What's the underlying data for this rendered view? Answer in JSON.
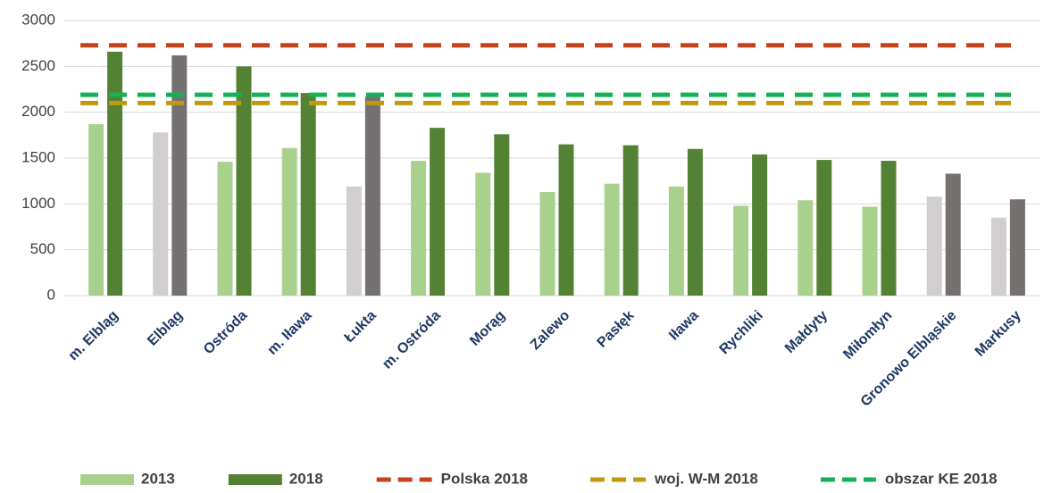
{
  "chart_data": {
    "type": "bar",
    "categories": [
      "m. Elbląg",
      "Elbląg",
      "Ostróda",
      "m. Iława",
      "Łukta",
      "m. Ostróda",
      "Morąg",
      "Zalewo",
      "Pasłęk",
      "Iława",
      "Rychliki",
      "Małdyty",
      "Miłomłyn",
      "Gronowo Elbląskie",
      "Markusy"
    ],
    "series": [
      {
        "name": "2013",
        "color": "#a9d18e",
        "colors": [
          "#a9d18e",
          "#d0cece",
          "#a9d18e",
          "#a9d18e",
          "#d0cece",
          "#a9d18e",
          "#a9d18e",
          "#a9d18e",
          "#a9d18e",
          "#a9d18e",
          "#a9d18e",
          "#a9d18e",
          "#a9d18e",
          "#d0cece",
          "#d0cece"
        ],
        "values": [
          1870,
          1780,
          1460,
          1610,
          1190,
          1470,
          1340,
          1130,
          1220,
          1190,
          980,
          1040,
          970,
          1080,
          850
        ]
      },
      {
        "name": "2018",
        "color": "#548235",
        "colors": [
          "#548235",
          "#767171",
          "#548235",
          "#548235",
          "#767171",
          "#548235",
          "#548235",
          "#548235",
          "#548235",
          "#548235",
          "#548235",
          "#548235",
          "#548235",
          "#767171",
          "#767171"
        ],
        "values": [
          2660,
          2620,
          2500,
          2210,
          2170,
          1830,
          1760,
          1650,
          1640,
          1600,
          1540,
          1480,
          1470,
          1330,
          1050
        ]
      }
    ],
    "reference_lines": [
      {
        "name": "Polska 2018",
        "color": "#c5421b",
        "value": 2730
      },
      {
        "name": "woj. W-M 2018",
        "color": "#bf9a10",
        "value": 2100
      },
      {
        "name": "obszar KE 2018",
        "color": "#14b159",
        "value": 2190
      }
    ],
    "ylim": [
      0,
      3000
    ],
    "yticks": [
      0,
      500,
      1000,
      1500,
      2000,
      2500,
      3000
    ],
    "grid": true
  }
}
